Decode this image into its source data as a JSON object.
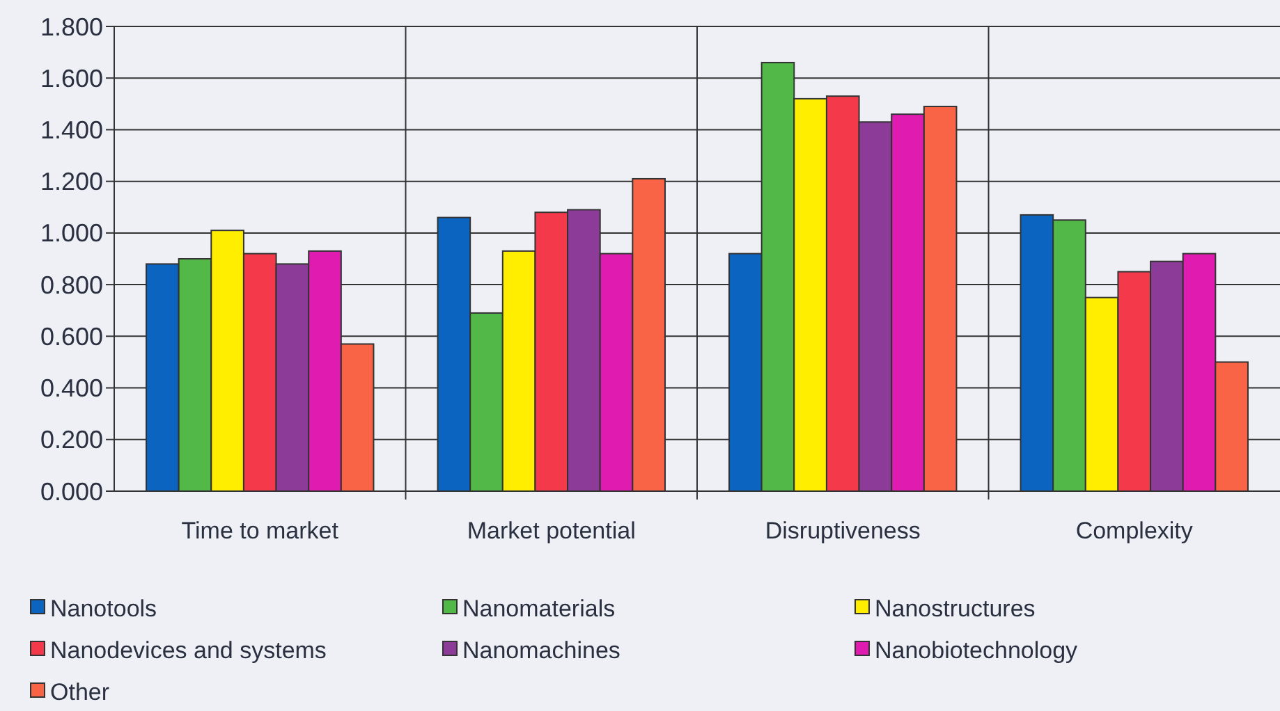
{
  "chart_data": {
    "type": "bar",
    "categories": [
      "Time to market",
      "Market potential",
      "Disruptiveness",
      "Complexity"
    ],
    "series": [
      {
        "name": "Nanotools",
        "color": "#0a64c0",
        "values": [
          0.88,
          1.06,
          0.92,
          1.07
        ]
      },
      {
        "name": "Nanomaterials",
        "color": "#52b848",
        "values": [
          0.9,
          0.69,
          1.66,
          1.05
        ]
      },
      {
        "name": "Nanostructures",
        "color": "#ffee00",
        "values": [
          1.01,
          0.93,
          1.52,
          0.75
        ]
      },
      {
        "name": "Nanodevices and systems",
        "color": "#f43a4a",
        "values": [
          0.92,
          1.08,
          1.53,
          0.85
        ]
      },
      {
        "name": "Nanomachines",
        "color": "#8c3c98",
        "values": [
          0.88,
          1.09,
          1.43,
          0.89
        ]
      },
      {
        "name": "Nanobiotechnology",
        "color": "#e01cb0",
        "values": [
          0.93,
          0.92,
          1.46,
          0.92
        ]
      },
      {
        "name": "Other",
        "color": "#fa6446",
        "values": [
          0.57,
          1.21,
          1.49,
          0.5
        ]
      }
    ],
    "ylim": [
      0,
      1.8
    ],
    "yticks": [
      {
        "value": 0,
        "label": "0.000"
      },
      {
        "value": 0.2,
        "label": "0.200"
      },
      {
        "value": 0.4,
        "label": "0.400"
      },
      {
        "value": 0.6,
        "label": "0.600"
      },
      {
        "value": 0.8,
        "label": "0.800"
      },
      {
        "value": 1,
        "label": "1.000"
      },
      {
        "value": 1.2,
        "label": "1.200"
      },
      {
        "value": 1.4,
        "label": "1.400"
      },
      {
        "value": 1.6,
        "label": "1.600"
      },
      {
        "value": 1.8,
        "label": "1.800"
      }
    ],
    "grid": true,
    "legend": "bottom"
  }
}
